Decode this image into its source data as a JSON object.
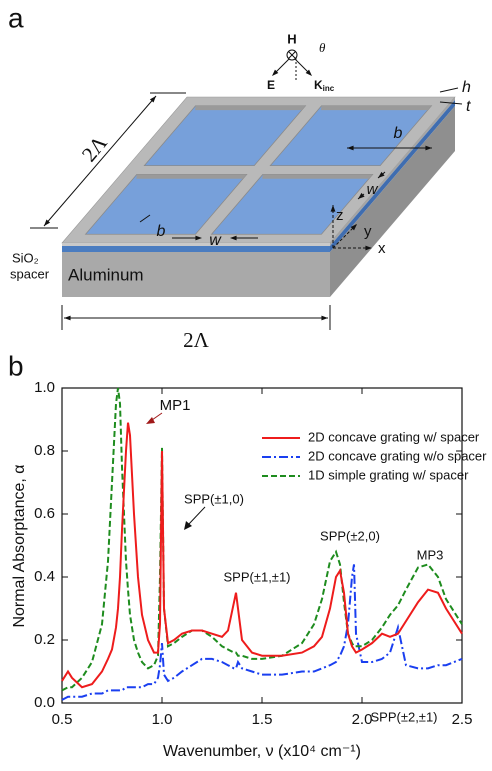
{
  "diagram": {
    "label": "a",
    "magnetic_field": "H",
    "electric_field": "E",
    "wavevector": "K",
    "wavevector_subscript": "inc",
    "angle": "θ",
    "period_left": "2Λ",
    "period_bottom": "2Λ",
    "window_width_1": "b",
    "bar_width_1": "w",
    "window_width_2": "b",
    "bar_width_2": "w",
    "grating_height": "h",
    "spacer_thickness": "t",
    "axis_z": "z",
    "axis_y": "y",
    "axis_x": "x",
    "spacer_label_1": "SiO₂",
    "spacer_label_2": "spacer",
    "substrate": "Aluminum"
  },
  "panel_b_label": "b",
  "chart_data": {
    "type": "line",
    "x_label": "Wavenumber, ν (x10⁴ cm⁻¹)",
    "y_label": "Normal Absorptance, α",
    "xlim": [
      0.5,
      2.5
    ],
    "ylim": [
      0,
      1
    ],
    "xticks": [
      0.5,
      {
        "value": 1,
        "label": "1.0"
      },
      1.5,
      {
        "value": 2,
        "label": "2.0"
      },
      2.5
    ],
    "yticks": [
      {
        "value": 0,
        "label": "0.0"
      },
      0.2,
      0.4,
      0.6,
      0.8,
      {
        "value": 1,
        "label": "1.0"
      }
    ],
    "legend": "upper right",
    "x": [
      0.5,
      0.53,
      0.55,
      0.6,
      0.65,
      0.7,
      0.73,
      0.75,
      0.77,
      0.78,
      0.79,
      0.8,
      0.82,
      0.83,
      0.84,
      0.86,
      0.88,
      0.9,
      0.93,
      0.96,
      0.98,
      0.99,
      1,
      1.01,
      1.03,
      1.06,
      1.1,
      1.15,
      1.2,
      1.25,
      1.3,
      1.33,
      1.36,
      1.37,
      1.38,
      1.4,
      1.45,
      1.5,
      1.6,
      1.7,
      1.76,
      1.8,
      1.84,
      1.87,
      1.89,
      1.91,
      1.93,
      1.95,
      1.96,
      1.97,
      2,
      2.05,
      2.1,
      2.14,
      2.18,
      2.22,
      2.28,
      2.33,
      2.38,
      2.42,
      2.46,
      2.5
    ],
    "series": [
      {
        "name": "2D concave grating w/ spacer",
        "color": "#ee1c1c",
        "style": "solid",
        "values": [
          0.07,
          0.1,
          0.08,
          0.05,
          0.06,
          0.1,
          0.14,
          0.17,
          0.24,
          0.3,
          0.4,
          0.55,
          0.8,
          0.89,
          0.85,
          0.6,
          0.4,
          0.28,
          0.2,
          0.16,
          0.16,
          0.25,
          0.8,
          0.3,
          0.19,
          0.2,
          0.22,
          0.23,
          0.23,
          0.22,
          0.21,
          0.23,
          0.32,
          0.35,
          0.3,
          0.2,
          0.16,
          0.15,
          0.15,
          0.16,
          0.18,
          0.21,
          0.3,
          0.4,
          0.42,
          0.35,
          0.22,
          0.18,
          0.17,
          0.16,
          0.17,
          0.19,
          0.22,
          0.21,
          0.22,
          0.26,
          0.32,
          0.36,
          0.35,
          0.3,
          0.26,
          0.22
        ]
      },
      {
        "name": "2D concave grating w/o spacer",
        "color": "#1a3ff0",
        "style": "dashdot",
        "values": [
          0.01,
          0.02,
          0.02,
          0.02,
          0.03,
          0.03,
          0.04,
          0.04,
          0.04,
          0.04,
          0.04,
          0.04,
          0.05,
          0.05,
          0.05,
          0.05,
          0.05,
          0.05,
          0.06,
          0.06,
          0.08,
          0.12,
          0.19,
          0.09,
          0.07,
          0.08,
          0.1,
          0.12,
          0.14,
          0.14,
          0.13,
          0.12,
          0.11,
          0.11,
          0.13,
          0.11,
          0.1,
          0.09,
          0.09,
          0.1,
          0.1,
          0.11,
          0.12,
          0.13,
          0.15,
          0.18,
          0.25,
          0.4,
          0.44,
          0.22,
          0.13,
          0.13,
          0.14,
          0.16,
          0.24,
          0.12,
          0.11,
          0.11,
          0.12,
          0.12,
          0.13,
          0.14
        ]
      },
      {
        "name": "1D simple grating w/ spacer",
        "color": "#1e8c1e",
        "style": "dashed",
        "values": [
          0.04,
          0.05,
          0.05,
          0.08,
          0.13,
          0.25,
          0.45,
          0.7,
          0.95,
          1.0,
          0.95,
          0.75,
          0.45,
          0.36,
          0.28,
          0.2,
          0.16,
          0.13,
          0.11,
          0.12,
          0.15,
          0.4,
          0.81,
          0.3,
          0.18,
          0.19,
          0.21,
          0.23,
          0.23,
          0.21,
          0.18,
          0.17,
          0.16,
          0.16,
          0.15,
          0.15,
          0.14,
          0.14,
          0.15,
          0.19,
          0.25,
          0.33,
          0.45,
          0.48,
          0.44,
          0.32,
          0.22,
          0.19,
          0.18,
          0.18,
          0.18,
          0.2,
          0.24,
          0.28,
          0.31,
          0.36,
          0.43,
          0.44,
          0.4,
          0.33,
          0.29,
          0.25
        ]
      }
    ],
    "annotations": [
      {
        "text": "MP1",
        "color": "#a01818"
      },
      {
        "text": "SPP(±1,0)",
        "color": "#111111"
      },
      {
        "text": "SPP(±1,±1)",
        "color": "#111111"
      },
      {
        "text": "SPP(±2,0)",
        "color": "#111111"
      },
      {
        "text": "MP3",
        "color": "#a01818"
      },
      {
        "text": "SPP(±2,±1)",
        "color": "#111111"
      }
    ]
  }
}
